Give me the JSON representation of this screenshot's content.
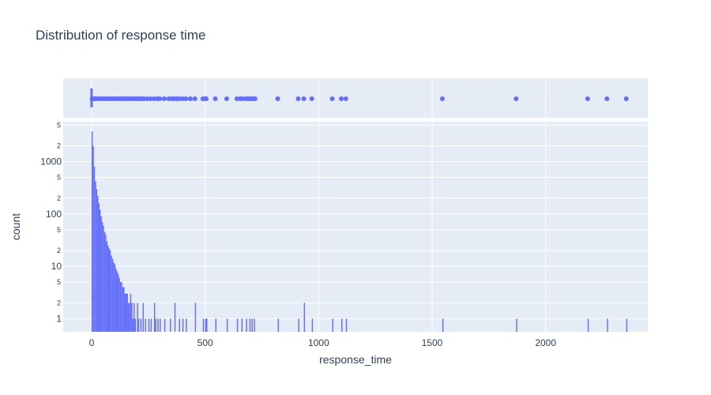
{
  "chart_data": {
    "type": "histogram",
    "title": "Distribution of response time",
    "xlabel": "response_time",
    "ylabel": "count",
    "x_range": [
      -125,
      2450
    ],
    "x_ticks": [
      0,
      500,
      1000,
      1500,
      2000
    ],
    "x_tick_labels": [
      "0",
      "500",
      "1000",
      "1500",
      "2000"
    ],
    "y_scale": "log",
    "y_range": [
      0.56,
      5800
    ],
    "y_major_ticks": [
      1,
      10,
      100,
      1000
    ],
    "y_major_labels": [
      "1",
      "10",
      "100",
      "1000"
    ],
    "y_minor_ticks": [
      2,
      5,
      20,
      50,
      200,
      500,
      2000,
      5000
    ],
    "y_minor_labels": [
      "2",
      "5",
      "2",
      "5",
      "2",
      "5",
      "2",
      "5"
    ],
    "bar_color": "#636efa",
    "background_color": "#e5ecf6",
    "grid_color": "#ffffff",
    "bin_width": 5,
    "bins": [
      [
        0,
        3800
      ],
      [
        5,
        2000
      ],
      [
        10,
        800
      ],
      [
        15,
        420
      ],
      [
        20,
        300
      ],
      [
        25,
        220
      ],
      [
        30,
        160
      ],
      [
        35,
        120
      ],
      [
        40,
        90
      ],
      [
        45,
        70
      ],
      [
        50,
        60
      ],
      [
        55,
        45
      ],
      [
        60,
        40
      ],
      [
        65,
        30
      ],
      [
        70,
        25
      ],
      [
        75,
        22
      ],
      [
        80,
        20
      ],
      [
        85,
        16
      ],
      [
        90,
        14
      ],
      [
        95,
        12
      ],
      [
        100,
        11
      ],
      [
        105,
        9
      ],
      [
        110,
        8
      ],
      [
        115,
        7
      ],
      [
        120,
        6
      ],
      [
        125,
        5
      ],
      [
        130,
        5
      ],
      [
        135,
        4
      ],
      [
        140,
        4
      ],
      [
        145,
        3
      ],
      [
        150,
        3
      ],
      [
        155,
        3
      ],
      [
        160,
        2
      ],
      [
        165,
        2
      ],
      [
        170,
        3
      ],
      [
        175,
        2
      ],
      [
        180,
        1
      ],
      [
        185,
        2
      ],
      [
        190,
        1
      ],
      [
        200,
        2
      ],
      [
        205,
        1
      ],
      [
        215,
        1
      ],
      [
        225,
        2
      ],
      [
        235,
        1
      ],
      [
        250,
        1
      ],
      [
        260,
        1
      ],
      [
        275,
        2
      ],
      [
        280,
        1
      ],
      [
        290,
        1
      ],
      [
        300,
        1
      ],
      [
        320,
        1
      ],
      [
        345,
        1
      ],
      [
        365,
        2
      ],
      [
        385,
        1
      ],
      [
        400,
        1
      ],
      [
        415,
        1
      ],
      [
        455,
        2
      ],
      [
        490,
        1
      ],
      [
        500,
        1
      ],
      [
        505,
        1
      ],
      [
        545,
        1
      ],
      [
        595,
        1
      ],
      [
        640,
        1
      ],
      [
        660,
        1
      ],
      [
        680,
        1
      ],
      [
        695,
        1
      ],
      [
        705,
        1
      ],
      [
        715,
        1
      ],
      [
        820,
        1
      ],
      [
        910,
        1
      ],
      [
        935,
        2
      ],
      [
        970,
        1
      ],
      [
        1060,
        1
      ],
      [
        1100,
        1
      ],
      [
        1120,
        1
      ],
      [
        1545,
        1
      ],
      [
        1870,
        1
      ],
      [
        2185,
        1
      ],
      [
        2270,
        1
      ],
      [
        2355,
        1
      ]
    ],
    "marginal": {
      "type": "rug",
      "values": [
        2,
        5,
        10,
        15,
        20,
        30,
        40,
        50,
        60,
        70,
        80,
        90,
        100,
        110,
        120,
        130,
        140,
        150,
        160,
        170,
        180,
        190,
        200,
        210,
        220,
        230,
        245,
        260,
        275,
        290,
        300,
        320,
        340,
        355,
        365,
        375,
        385,
        400,
        415,
        435,
        455,
        490,
        500,
        505,
        545,
        595,
        640,
        655,
        665,
        680,
        690,
        700,
        710,
        720,
        820,
        910,
        935,
        970,
        1060,
        1100,
        1120,
        1545,
        1870,
        2185,
        2270,
        2355
      ]
    }
  }
}
